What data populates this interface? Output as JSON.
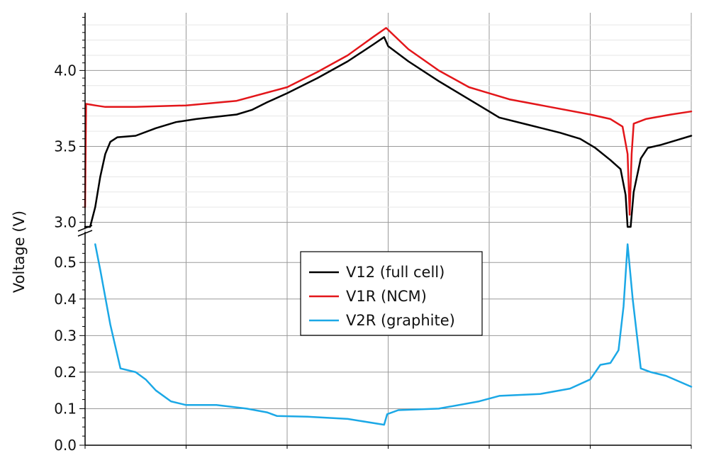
{
  "chart_data": {
    "type": "line",
    "title": "",
    "xlabel": "",
    "ylabel": "Voltage (V)",
    "axis_break": {
      "lower_max": 0.55,
      "upper_min": 3.0
    },
    "upper_axis": {
      "ylim": [
        2.97,
        4.38
      ],
      "ticks": [
        3.0,
        3.5,
        4.0
      ],
      "tick_labels": [
        "3.0",
        "3.5",
        "4.0"
      ]
    },
    "lower_axis": {
      "ylim": [
        0.0,
        0.58
      ],
      "ticks": [
        0.0,
        0.1,
        0.2,
        0.3,
        0.4,
        0.5
      ],
      "tick_labels": [
        "0.0",
        "0.1",
        "0.2",
        "0.3",
        "0.4",
        "0.5"
      ]
    },
    "xlim": [
      0,
      6
    ],
    "grid": true,
    "legend_position": "center",
    "series": [
      {
        "name": "V12 (full cell)",
        "color": "#000000",
        "panel": "upper",
        "points": [
          [
            0.0,
            2.97
          ],
          [
            0.05,
            2.97
          ],
          [
            0.1,
            3.1
          ],
          [
            0.15,
            3.3
          ],
          [
            0.2,
            3.45
          ],
          [
            0.25,
            3.53
          ],
          [
            0.32,
            3.56
          ],
          [
            0.5,
            3.57
          ],
          [
            0.7,
            3.62
          ],
          [
            0.9,
            3.66
          ],
          [
            1.1,
            3.68
          ],
          [
            1.5,
            3.71
          ],
          [
            1.65,
            3.74
          ],
          [
            1.8,
            3.79
          ],
          [
            2.0,
            3.85
          ],
          [
            2.3,
            3.95
          ],
          [
            2.6,
            4.06
          ],
          [
            2.85,
            4.17
          ],
          [
            2.96,
            4.22
          ],
          [
            3.0,
            4.16
          ],
          [
            3.2,
            4.06
          ],
          [
            3.5,
            3.93
          ],
          [
            3.8,
            3.81
          ],
          [
            4.0,
            3.73
          ],
          [
            4.1,
            3.69
          ],
          [
            4.4,
            3.64
          ],
          [
            4.7,
            3.59
          ],
          [
            4.9,
            3.55
          ],
          [
            5.05,
            3.49
          ],
          [
            5.2,
            3.41
          ],
          [
            5.3,
            3.35
          ],
          [
            5.35,
            3.18
          ],
          [
            5.37,
            2.97
          ],
          [
            5.4,
            2.97
          ],
          [
            5.43,
            3.2
          ],
          [
            5.5,
            3.42
          ],
          [
            5.57,
            3.49
          ],
          [
            5.7,
            3.51
          ],
          [
            5.85,
            3.54
          ],
          [
            6.0,
            3.57
          ]
        ]
      },
      {
        "name": "V1R (NCM)",
        "color": "#e3161a",
        "panel": "upper",
        "points": [
          [
            0.0,
            3.1
          ],
          [
            0.01,
            3.78
          ],
          [
            0.1,
            3.77
          ],
          [
            0.2,
            3.76
          ],
          [
            0.5,
            3.76
          ],
          [
            1.0,
            3.77
          ],
          [
            1.5,
            3.8
          ],
          [
            2.0,
            3.89
          ],
          [
            2.3,
            3.99
          ],
          [
            2.6,
            4.1
          ],
          [
            2.85,
            4.22
          ],
          [
            2.98,
            4.28
          ],
          [
            3.2,
            4.14
          ],
          [
            3.5,
            4.0
          ],
          [
            3.8,
            3.89
          ],
          [
            4.2,
            3.81
          ],
          [
            4.6,
            3.76
          ],
          [
            5.0,
            3.71
          ],
          [
            5.2,
            3.68
          ],
          [
            5.32,
            3.63
          ],
          [
            5.37,
            3.45
          ],
          [
            5.39,
            3.05
          ],
          [
            5.41,
            3.45
          ],
          [
            5.43,
            3.65
          ],
          [
            5.55,
            3.68
          ],
          [
            5.8,
            3.71
          ],
          [
            6.0,
            3.73
          ]
        ]
      },
      {
        "name": "V2R (graphite)",
        "color": "#1ba8e6",
        "panel": "lower",
        "points": [
          [
            0.1,
            0.55
          ],
          [
            0.15,
            0.48
          ],
          [
            0.25,
            0.33
          ],
          [
            0.35,
            0.21
          ],
          [
            0.5,
            0.2
          ],
          [
            0.6,
            0.18
          ],
          [
            0.7,
            0.15
          ],
          [
            0.85,
            0.12
          ],
          [
            1.0,
            0.11
          ],
          [
            1.3,
            0.11
          ],
          [
            1.6,
            0.1
          ],
          [
            1.8,
            0.09
          ],
          [
            1.9,
            0.08
          ],
          [
            2.2,
            0.078
          ],
          [
            2.6,
            0.072
          ],
          [
            2.96,
            0.056
          ],
          [
            2.99,
            0.085
          ],
          [
            3.1,
            0.096
          ],
          [
            3.5,
            0.1
          ],
          [
            3.9,
            0.12
          ],
          [
            4.1,
            0.135
          ],
          [
            4.5,
            0.14
          ],
          [
            4.8,
            0.155
          ],
          [
            5.0,
            0.18
          ],
          [
            5.1,
            0.22
          ],
          [
            5.2,
            0.225
          ],
          [
            5.28,
            0.26
          ],
          [
            5.33,
            0.38
          ],
          [
            5.37,
            0.55
          ],
          [
            5.42,
            0.4
          ],
          [
            5.5,
            0.21
          ],
          [
            5.6,
            0.2
          ],
          [
            5.75,
            0.19
          ],
          [
            6.0,
            0.16
          ]
        ]
      }
    ]
  }
}
